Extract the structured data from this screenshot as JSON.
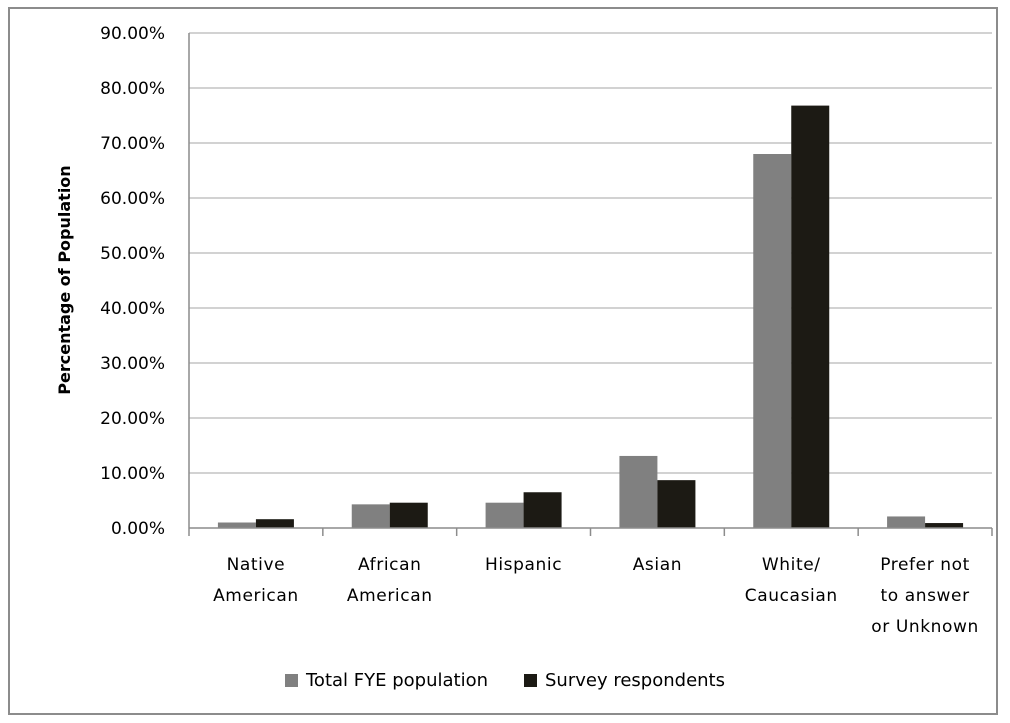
{
  "chart_data": {
    "type": "bar",
    "title": "",
    "xlabel": "",
    "ylabel": "Percentage of Population",
    "ylim": [
      0,
      0.9
    ],
    "yticks": [
      0,
      0.1,
      0.2,
      0.3,
      0.4,
      0.5,
      0.6,
      0.7,
      0.8,
      0.9
    ],
    "ytick_labels": [
      "0.00%",
      "10.00%",
      "20.00%",
      "30.00%",
      "40.00%",
      "50.00%",
      "60.00%",
      "70.00%",
      "80.00%",
      "90.00%"
    ],
    "categories": [
      [
        "Native",
        "American"
      ],
      [
        "African",
        "American"
      ],
      [
        "Hispanic"
      ],
      [
        "Asian"
      ],
      [
        "White/",
        "Caucasian"
      ],
      [
        "Prefer not",
        "to answer",
        "or Unknown"
      ]
    ],
    "series": [
      {
        "name": "Total FYE population",
        "color": "#808080",
        "values": [
          0.01,
          0.043,
          0.046,
          0.131,
          0.68,
          0.021
        ]
      },
      {
        "name": "Survey respondents",
        "color": "#1c1a14",
        "values": [
          0.016,
          0.046,
          0.065,
          0.087,
          0.768,
          0.009
        ]
      }
    ],
    "grid": true,
    "legend_position": "bottom"
  }
}
